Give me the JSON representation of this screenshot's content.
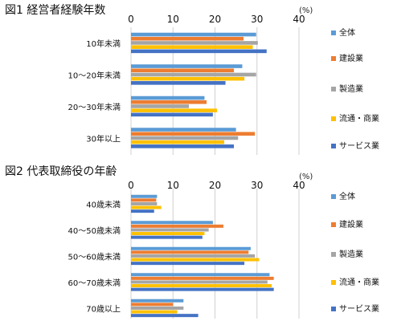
{
  "chart_data": [
    {
      "type": "bar",
      "orientation": "horizontal",
      "title": "図1 経営者経験年数",
      "unit": "(%)",
      "xlim": [
        0,
        40
      ],
      "x_ticks": [
        "0",
        "10",
        "20",
        "30",
        "40"
      ],
      "grid": "vertical",
      "legend_position": "right",
      "categories": [
        "10年未満",
        "10～20年未満",
        "20～30年未満",
        "30年以上"
      ],
      "series": [
        {
          "name": "全体",
          "color": "#5B9BD5",
          "values": [
            29.8,
            26.5,
            17.5,
            25.0
          ]
        },
        {
          "name": "建設業",
          "color": "#ED7D31",
          "values": [
            26.8,
            24.5,
            18.0,
            29.5
          ]
        },
        {
          "name": "製造業",
          "color": "#A5A5A5",
          "values": [
            30.2,
            29.8,
            13.8,
            25.5
          ]
        },
        {
          "name": "流通・商業",
          "color": "#FFC000",
          "values": [
            29.0,
            27.0,
            20.5,
            22.2
          ]
        },
        {
          "name": "サービス業",
          "color": "#4472C4",
          "values": [
            32.3,
            22.5,
            19.5,
            24.5
          ]
        }
      ]
    },
    {
      "type": "bar",
      "orientation": "horizontal",
      "title": "図2 代表取締役の年齢",
      "unit": "(%)",
      "xlim": [
        0,
        40
      ],
      "x_ticks": [
        "0",
        "10",
        "20",
        "30",
        "40"
      ],
      "grid": "vertical",
      "legend_position": "right",
      "categories": [
        "40歳未満",
        "40～50歳未満",
        "50～60歳未満",
        "60～70歳未満",
        "70歳以上"
      ],
      "series": [
        {
          "name": "全体",
          "color": "#5B9BD5",
          "values": [
            6.2,
            19.5,
            28.5,
            33.0,
            12.5
          ]
        },
        {
          "name": "建設業",
          "color": "#ED7D31",
          "values": [
            6.0,
            22.0,
            28.0,
            34.0,
            10.0
          ]
        },
        {
          "name": "製造業",
          "color": "#A5A5A5",
          "values": [
            6.2,
            18.5,
            29.5,
            32.5,
            12.5
          ]
        },
        {
          "name": "流通・商業",
          "color": "#FFC000",
          "values": [
            7.2,
            17.5,
            30.5,
            33.5,
            11.0
          ]
        },
        {
          "name": "サービス業",
          "color": "#4472C4",
          "values": [
            5.5,
            17.0,
            27.0,
            34.0,
            16.0
          ]
        }
      ]
    }
  ]
}
